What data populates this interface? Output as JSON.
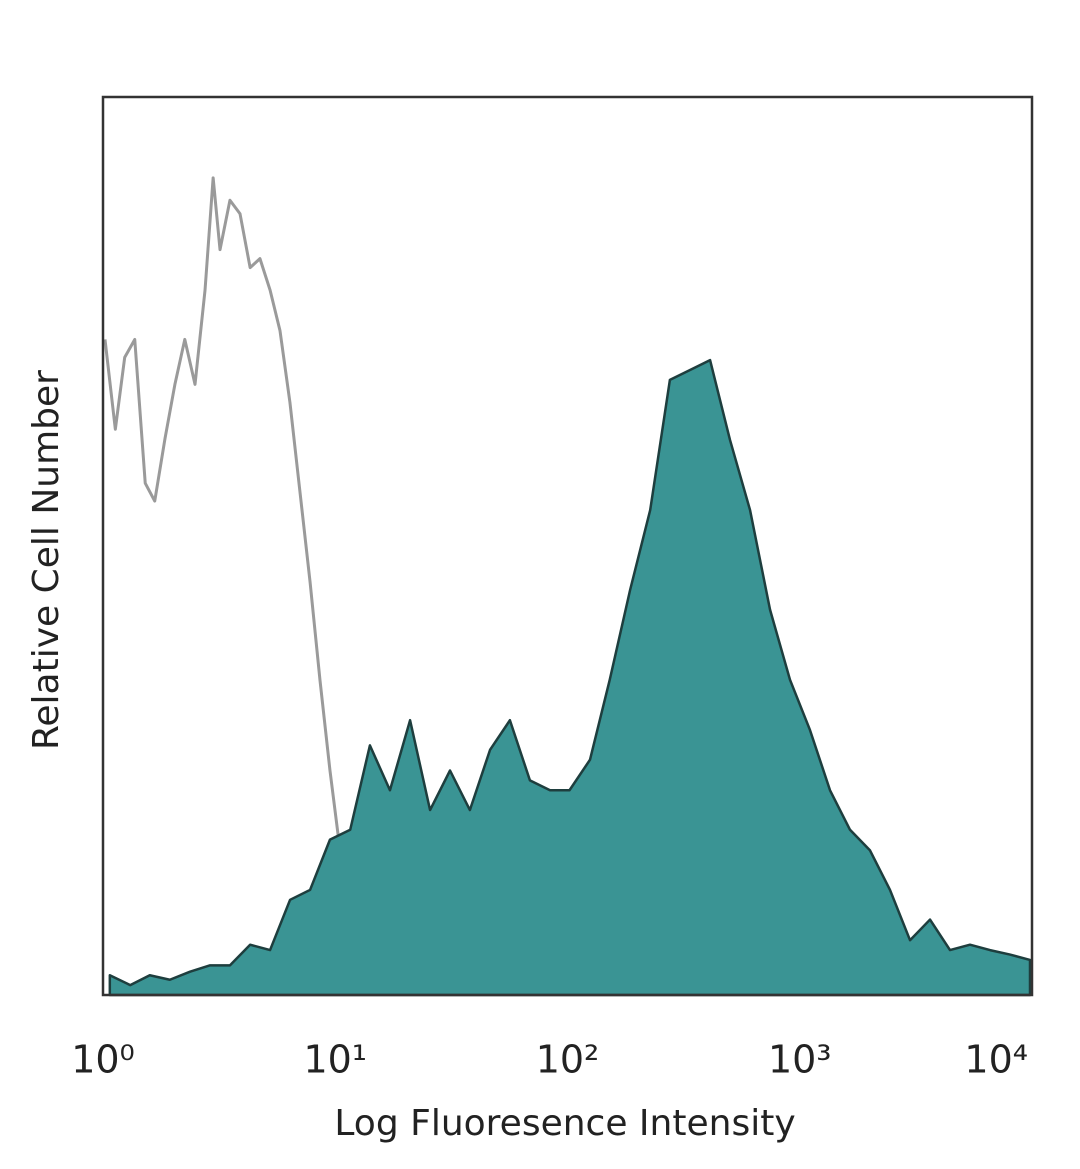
{
  "chart_data": {
    "type": "histogram-overlay",
    "xlabel": "Log Fluoresence Intensity",
    "ylabel": "Relative Cell Number",
    "xscale": "log",
    "xlim": [
      1,
      10000
    ],
    "ylim": [
      0,
      100
    ],
    "xticks": [
      {
        "value": 1,
        "label": "10⁰"
      },
      {
        "value": 10,
        "label": "10¹"
      },
      {
        "value": 100,
        "label": "10²"
      },
      {
        "value": 1000,
        "label": "10³"
      },
      {
        "value": 10000,
        "label": "10⁴"
      }
    ],
    "grid": false,
    "series": [
      {
        "color": "#9a9a9a",
        "filled": false,
        "x": [
          1.02,
          1.13,
          1.24,
          1.37,
          1.52,
          1.67,
          1.85,
          2.04,
          2.25,
          2.49,
          2.75,
          2.98,
          3.19,
          3.52,
          3.89,
          4.3,
          4.74,
          5.24,
          5.78,
          6.38,
          7.05,
          7.79,
          8.6,
          9.49,
          10.5,
          11.6,
          12.8,
          14.8,
          16.4,
          18.1
        ],
        "values": [
          73,
          63,
          71,
          73,
          57,
          55,
          62,
          68,
          73,
          68,
          78.5,
          91,
          83,
          88.5,
          87,
          81,
          82,
          78.5,
          74,
          66,
          56,
          46,
          35,
          25,
          16,
          10.6,
          5,
          2.8,
          3.3,
          0.2
        ]
      },
      {
        "color": "#3a9494",
        "filled": true,
        "x": [
          1.07,
          1.31,
          1.59,
          1.94,
          2.37,
          2.89,
          3.52,
          4.3,
          5.24,
          6.39,
          7.79,
          9.49,
          11.6,
          14.1,
          17.2,
          21,
          25.6,
          31.2,
          38,
          46.4,
          56.5,
          68.9,
          84.1,
          102,
          125,
          152,
          186,
          227,
          276,
          337,
          411,
          501,
          611,
          745,
          908,
          1107,
          1350,
          1646,
          2007,
          2447,
          2984,
          3638,
          4436,
          5408,
          6594,
          8041,
          9804
        ],
        "values": [
          2.2,
          1.1,
          2.2,
          1.7,
          2.6,
          3.3,
          3.3,
          5.6,
          5,
          10.6,
          11.7,
          17.3,
          18.4,
          27.8,
          22.8,
          30.6,
          20.6,
          25,
          20.6,
          27.3,
          30.6,
          23.9,
          22.8,
          22.8,
          26.2,
          35.1,
          45.1,
          54,
          68.5,
          69.6,
          70.7,
          61.8,
          54,
          42.9,
          35.1,
          29.5,
          22.8,
          18.4,
          16.1,
          11.7,
          6.1,
          8.4,
          5,
          5.6,
          5,
          4.5,
          3.9
        ]
      }
    ]
  }
}
